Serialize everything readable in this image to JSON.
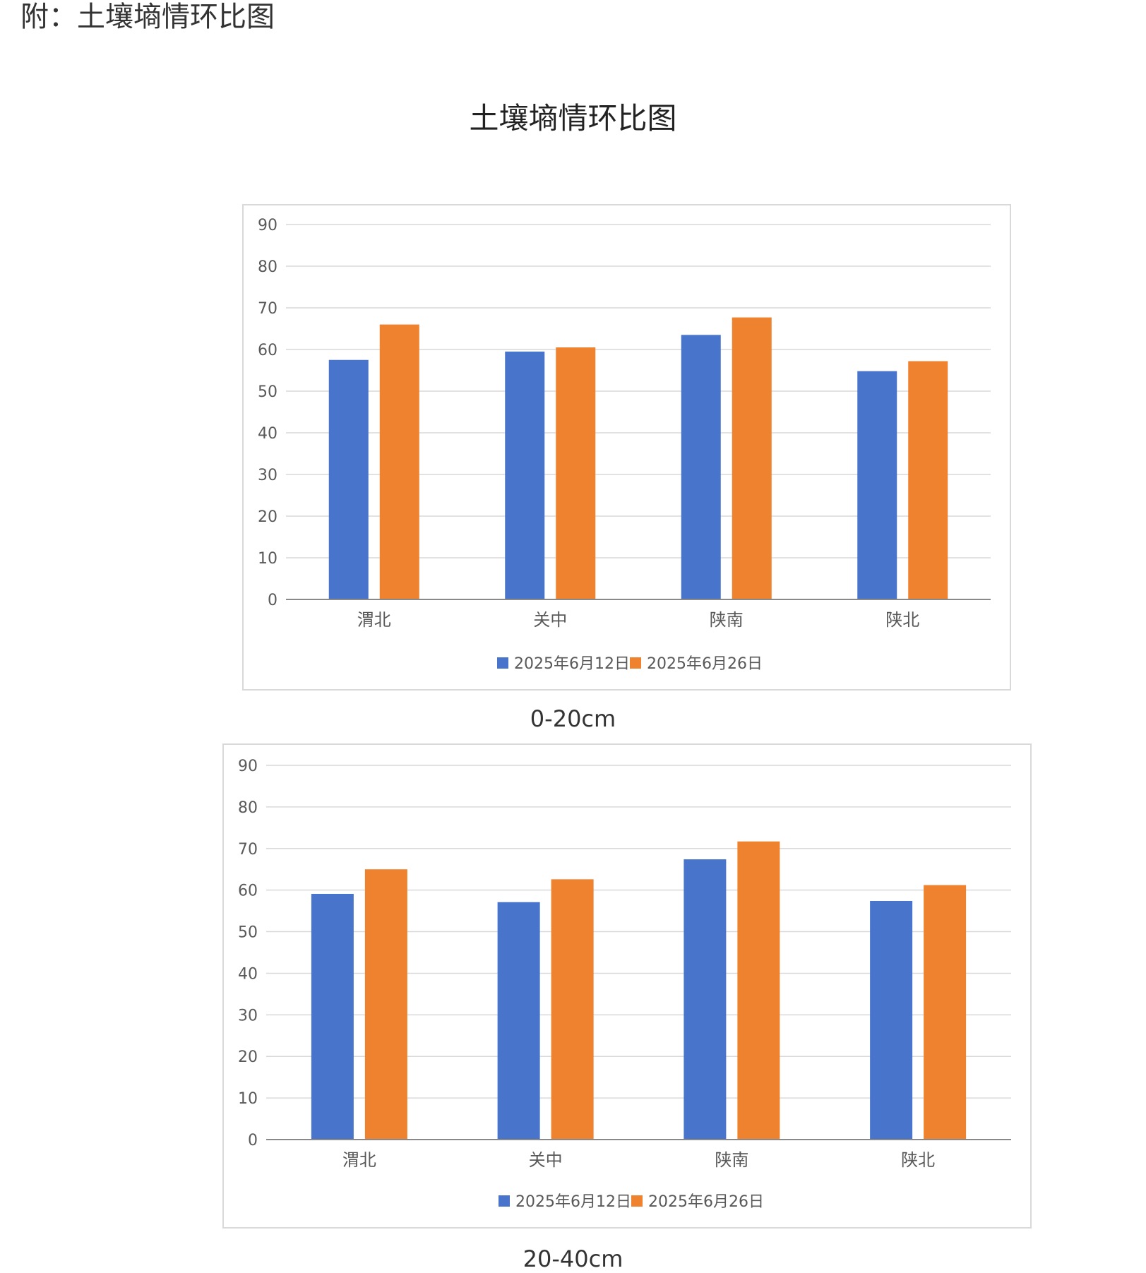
{
  "header": {
    "note": "附：土壤墒情环比图"
  },
  "main_title": "土壤墒情环比图",
  "colors": {
    "series1": "#4874cb",
    "series2": "#ee822f",
    "grid": "#d9d9d9",
    "axis": "#898989"
  },
  "chart_data": [
    {
      "type": "bar",
      "caption": "0-20cm",
      "categories": [
        "渭北",
        "关中",
        "陕南",
        "陕北"
      ],
      "series": [
        {
          "name": "2025年6月12日",
          "values": [
            57.5,
            59.5,
            63.5,
            54.8
          ]
        },
        {
          "name": "2025年6月26日",
          "values": [
            66,
            60.5,
            67.7,
            57.2
          ]
        }
      ],
      "ylim": [
        0,
        90
      ],
      "yticks": [
        0,
        10,
        20,
        30,
        40,
        50,
        60,
        70,
        80,
        90
      ],
      "grid": true,
      "legend": "bottom"
    },
    {
      "type": "bar",
      "caption": "20-40cm",
      "categories": [
        "渭北",
        "关中",
        "陕南",
        "陕北"
      ],
      "series": [
        {
          "name": "2025年6月12日",
          "values": [
            59.1,
            57.1,
            67.4,
            57.4
          ]
        },
        {
          "name": "2025年6月26日",
          "values": [
            65,
            62.6,
            71.7,
            61.2
          ]
        }
      ],
      "ylim": [
        0,
        90
      ],
      "yticks": [
        0,
        10,
        20,
        30,
        40,
        50,
        60,
        70,
        80,
        90
      ],
      "grid": true,
      "legend": "bottom"
    }
  ]
}
